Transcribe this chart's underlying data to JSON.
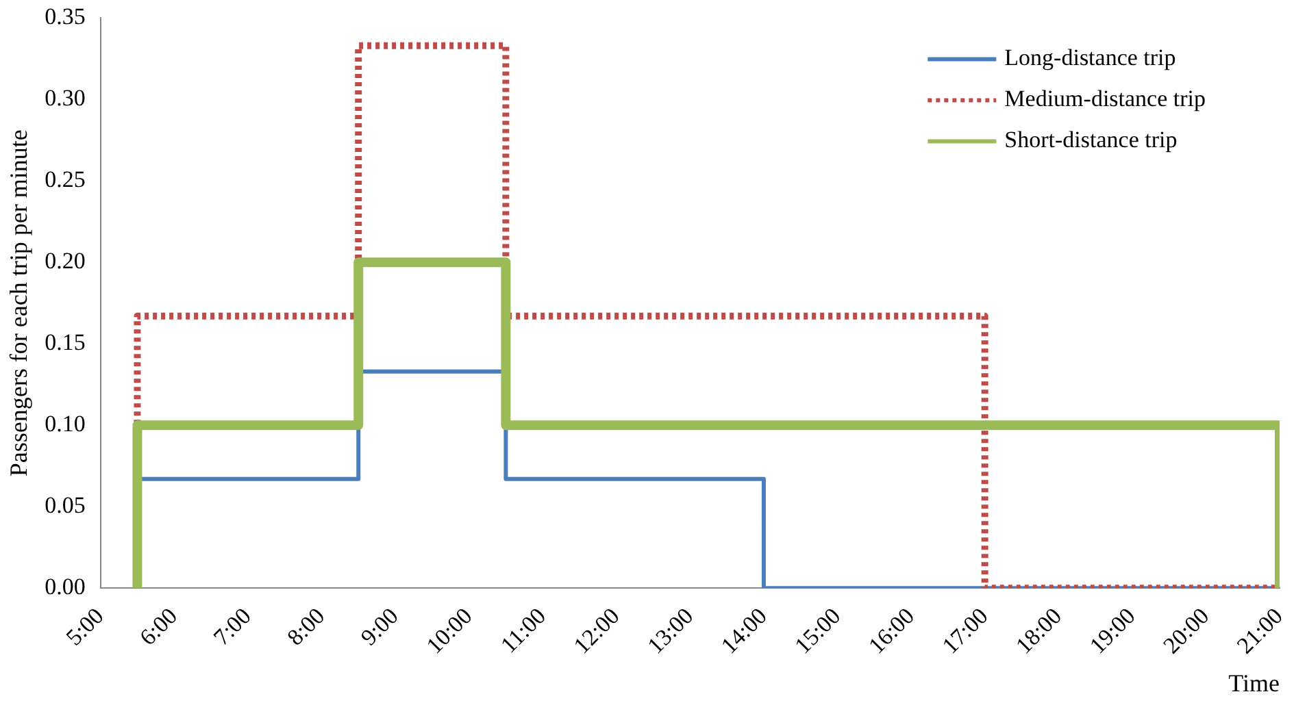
{
  "chart_data": {
    "type": "step",
    "xlabel": "Time",
    "ylabel": "Passengers for each trip per minute",
    "xlim": [
      5,
      21
    ],
    "xticks": [
      {
        "value": 5,
        "label": "5:00"
      },
      {
        "value": 6,
        "label": "6:00"
      },
      {
        "value": 7,
        "label": "7:00"
      },
      {
        "value": 8,
        "label": "8:00"
      },
      {
        "value": 9,
        "label": "9:00"
      },
      {
        "value": 10,
        "label": "10:00"
      },
      {
        "value": 11,
        "label": "11:00"
      },
      {
        "value": 12,
        "label": "12:00"
      },
      {
        "value": 13,
        "label": "13:00"
      },
      {
        "value": 14,
        "label": "14:00"
      },
      {
        "value": 15,
        "label": "15:00"
      },
      {
        "value": 16,
        "label": "16:00"
      },
      {
        "value": 17,
        "label": "17:00"
      },
      {
        "value": 18,
        "label": "18:00"
      },
      {
        "value": 19,
        "label": "19:00"
      },
      {
        "value": 20,
        "label": "20:00"
      },
      {
        "value": 21,
        "label": "21:00"
      }
    ],
    "ylim": [
      0,
      0.35
    ],
    "yticks": [
      {
        "value": 0,
        "label": "0.00"
      },
      {
        "value": 0.05,
        "label": "0.05"
      },
      {
        "value": 0.1,
        "label": "0.10"
      },
      {
        "value": 0.15,
        "label": "0.15"
      },
      {
        "value": 0.2,
        "label": "0.20"
      },
      {
        "value": 0.25,
        "label": "0.25"
      },
      {
        "value": 0.3,
        "label": "0.30"
      },
      {
        "value": 0.35,
        "label": "0.35"
      }
    ],
    "grid": false,
    "legend": "top right",
    "marker": "none",
    "series": [
      {
        "name": "Long-distance trip",
        "color": "#4a7ebb",
        "line_style": "solid",
        "x": [
          5.5,
          5.5,
          8.5,
          10.5,
          14,
          21
        ],
        "values": [
          0,
          0.067,
          0.133,
          0.067,
          0,
          0
        ]
      },
      {
        "name": "Medium-distance trip",
        "color": "#be4b48",
        "line_style": "dotted",
        "x": [
          5.5,
          5.5,
          8.5,
          10.5,
          17,
          21
        ],
        "values": [
          0,
          0.167,
          0.333,
          0.167,
          0,
          0
        ]
      },
      {
        "name": "Short-distance trip",
        "color": "#9bbb59",
        "line_style": "solid",
        "x": [
          5.5,
          5.5,
          8.5,
          10.5,
          21
        ],
        "values": [
          0,
          0.1,
          0.2,
          0.1,
          0
        ]
      }
    ]
  }
}
